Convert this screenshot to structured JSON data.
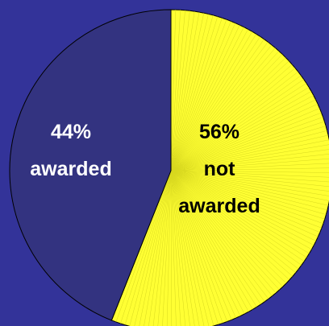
{
  "chart_data": {
    "type": "pie",
    "title": "",
    "categories": [
      "not awarded",
      "awarded"
    ],
    "values": [
      56,
      44
    ],
    "unit": "%",
    "colors": [
      "#ffff33",
      "#333380"
    ],
    "label_colors": [
      "#000000",
      "#ffffff"
    ],
    "label_lines": [
      [
        "56%",
        "not",
        "awarded"
      ],
      [
        "44%",
        "awarded"
      ]
    ],
    "start_angle_deg": 0,
    "direction": "clockwise",
    "legend": "none"
  },
  "background_color": "#333399"
}
